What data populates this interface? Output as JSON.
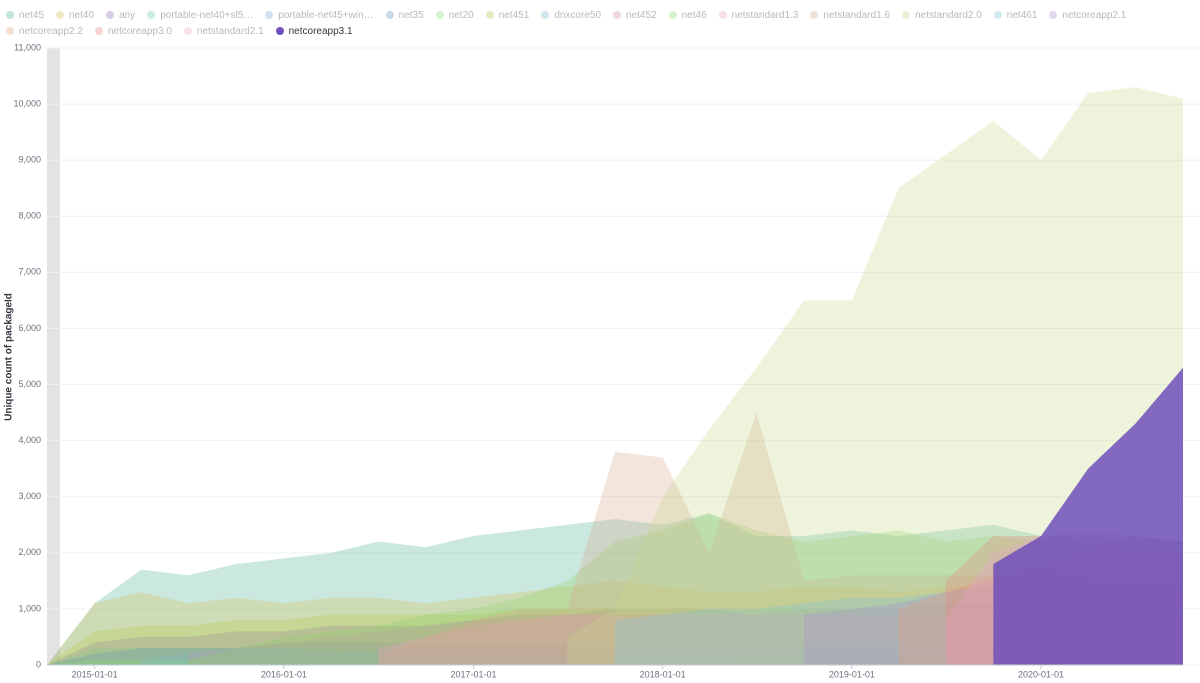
{
  "chart_data": {
    "type": "area",
    "y_label": "Unique count of packageId",
    "x": [
      "2014-10-01",
      "2015-01-01",
      "2015-04-01",
      "2015-07-01",
      "2015-10-01",
      "2016-01-01",
      "2016-04-01",
      "2016-07-01",
      "2016-10-01",
      "2017-01-01",
      "2017-04-01",
      "2017-07-01",
      "2017-10-01",
      "2018-01-01",
      "2018-04-01",
      "2018-07-01",
      "2018-10-01",
      "2019-01-01",
      "2019-04-01",
      "2019-07-01",
      "2019-10-01",
      "2020-01-01",
      "2020-04-01",
      "2020-07-01",
      "2020-10-01"
    ],
    "xlim": [
      "2014-10-01",
      "2020-10-01"
    ],
    "xticks": [
      "2015-01-01",
      "2016-01-01",
      "2017-01-01",
      "2018-01-01",
      "2019-01-01",
      "2020-01-01"
    ],
    "ylim": [
      0,
      11000
    ],
    "yticks": [
      0,
      {
        "value": 1000,
        "label": "1,000"
      },
      {
        "value": 2000,
        "label": "2,000"
      },
      {
        "value": 3000,
        "label": "3,000"
      },
      {
        "value": 4000,
        "label": "4,000"
      },
      {
        "value": 5000,
        "label": "5,000"
      },
      {
        "value": 6000,
        "label": "6,000"
      },
      {
        "value": 7000,
        "label": "7,000"
      },
      {
        "value": 8000,
        "label": "8,000"
      },
      {
        "value": 9000,
        "label": "9,000"
      },
      {
        "value": 10000,
        "label": "10,000"
      },
      {
        "value": 11000,
        "label": "11,000"
      }
    ],
    "grid": true,
    "series": [
      {
        "name": "net45",
        "color": "#54b399",
        "dimmed": true,
        "values": [
          0,
          1100,
          1700,
          1600,
          1800,
          1900,
          2000,
          2200,
          2100,
          2300,
          2400,
          2500,
          2600,
          2500,
          2700,
          2300,
          2300,
          2400,
          2300,
          2400,
          2500,
          2300,
          2300,
          2200,
          2200
        ]
      },
      {
        "name": "net40",
        "color": "#d6bf57",
        "dimmed": true,
        "values": [
          0,
          1100,
          1300,
          1100,
          1200,
          1100,
          1200,
          1200,
          1100,
          1200,
          1300,
          1400,
          1500,
          1400,
          1300,
          1300,
          1400,
          1400,
          1300,
          1400,
          1400,
          1300,
          1300,
          1200,
          1200
        ]
      },
      {
        "name": "any",
        "color": "#9170b8",
        "dimmed": true,
        "values": [
          0,
          400,
          500,
          500,
          600,
          600,
          700,
          700,
          700,
          800,
          900,
          900,
          1000,
          1000,
          1000,
          900,
          1000,
          1000,
          1000,
          1100,
          1100,
          1100,
          1200,
          1200,
          1100
        ]
      },
      {
        "name": "portable-net40+sl5…",
        "color": "#6dccb1",
        "dimmed": true,
        "values": [
          0,
          300,
          300,
          300,
          300,
          300,
          300,
          200,
          200,
          200,
          200,
          200,
          100,
          100,
          100,
          100,
          100,
          100,
          100,
          100,
          100,
          100,
          100,
          100,
          100
        ]
      },
      {
        "name": "portable-net45+win…",
        "color": "#79aad9",
        "dimmed": true,
        "values": [
          0,
          200,
          300,
          300,
          300,
          300,
          300,
          300,
          300,
          300,
          300,
          200,
          200,
          200,
          200,
          200,
          200,
          200,
          200,
          200,
          200,
          200,
          200,
          200,
          200
        ]
      },
      {
        "name": "net35",
        "color": "#6092c0",
        "dimmed": true,
        "values": [
          0,
          200,
          300,
          300,
          300,
          400,
          400,
          400,
          400,
          400,
          400,
          400,
          400,
          400,
          400,
          400,
          400,
          400,
          400,
          400,
          400,
          400,
          400,
          400,
          400
        ]
      },
      {
        "name": "net20",
        "color": "#7de07d",
        "dimmed": true,
        "values": [
          0,
          100,
          100,
          100,
          100,
          100,
          100,
          100,
          100,
          100,
          100,
          100,
          100,
          100,
          100,
          100,
          100,
          100,
          100,
          100,
          100,
          100,
          100,
          100,
          100
        ]
      },
      {
        "name": "net451",
        "color": "#b0c94a",
        "dimmed": true,
        "values": [
          0,
          600,
          700,
          700,
          800,
          800,
          900,
          900,
          900,
          900,
          1000,
          1000,
          1000,
          1000,
          1000,
          1000,
          1000,
          1000,
          900,
          900,
          900,
          900,
          900,
          900,
          900
        ]
      },
      {
        "name": "dnxcore50",
        "color": "#7fb8cc",
        "dimmed": true,
        "values": [
          null,
          null,
          100,
          200,
          300,
          300,
          200,
          200,
          100,
          100,
          100,
          100,
          100,
          100,
          100,
          0,
          0,
          0,
          0,
          0,
          0,
          0,
          0,
          0,
          0
        ]
      },
      {
        "name": "net452",
        "color": "#ca8eae",
        "dimmed": true,
        "values": [
          null,
          null,
          null,
          200,
          300,
          400,
          500,
          600,
          700,
          800,
          800,
          900,
          900,
          900,
          900,
          900,
          900,
          900,
          900,
          900,
          900,
          900,
          900,
          900,
          900
        ]
      },
      {
        "name": "net46",
        "color": "#8fd36a",
        "dimmed": true,
        "values": [
          null,
          null,
          null,
          100,
          300,
          500,
          600,
          700,
          900,
          1000,
          1200,
          1500,
          2200,
          2400,
          2700,
          2400,
          2200,
          2300,
          2400,
          2200,
          2300,
          2200,
          2300,
          2300,
          2200
        ]
      },
      {
        "name": "netstandard1.3",
        "color": "#e7a0c2",
        "dimmed": true,
        "values": [
          null,
          null,
          null,
          null,
          null,
          null,
          null,
          300,
          500,
          700,
          800,
          900,
          900,
          900,
          900,
          900,
          900,
          900,
          900,
          900,
          900,
          800,
          800,
          800,
          800
        ]
      },
      {
        "name": "netstandard1.6",
        "color": "#d6a58c",
        "dimmed": true,
        "values": [
          null,
          null,
          null,
          null,
          null,
          null,
          null,
          200,
          500,
          800,
          1000,
          1000,
          3800,
          3700,
          2000,
          4500,
          1500,
          1600,
          1600,
          1600,
          1600,
          1500,
          1500,
          1400,
          1400
        ]
      },
      {
        "name": "netstandard2.0",
        "color": "#c6d68a",
        "dimmed": true,
        "values": [
          null,
          null,
          null,
          null,
          null,
          null,
          null,
          null,
          null,
          null,
          null,
          500,
          1000,
          3000,
          4200,
          5300,
          6500,
          6500,
          8500,
          9100,
          9700,
          9000,
          10200,
          10300,
          10100
        ]
      },
      {
        "name": "net461",
        "color": "#7fc4e0",
        "dimmed": true,
        "values": [
          null,
          null,
          null,
          null,
          null,
          null,
          null,
          null,
          null,
          null,
          null,
          null,
          800,
          900,
          1000,
          1000,
          1100,
          1200,
          1200,
          1300,
          1400,
          1400,
          1400,
          1400,
          1300
        ]
      },
      {
        "name": "netcoreapp2.1",
        "color": "#a98fd0",
        "dimmed": true,
        "values": [
          null,
          null,
          null,
          null,
          null,
          null,
          null,
          null,
          null,
          null,
          null,
          null,
          null,
          null,
          null,
          null,
          900,
          1000,
          1100,
          1300,
          1500,
          1800,
          2100,
          2300,
          2200
        ]
      },
      {
        "name": "netcoreapp2.2",
        "color": "#e0a37b",
        "dimmed": true,
        "values": [
          null,
          null,
          null,
          null,
          null,
          null,
          null,
          null,
          null,
          null,
          null,
          null,
          null,
          null,
          null,
          null,
          null,
          null,
          1000,
          1300,
          1600,
          1700,
          1500,
          1500,
          1400
        ]
      },
      {
        "name": "netcoreapp3.0",
        "color": "#e7857f",
        "dimmed": true,
        "values": [
          null,
          null,
          null,
          null,
          null,
          null,
          null,
          null,
          null,
          null,
          null,
          null,
          null,
          null,
          null,
          null,
          null,
          null,
          null,
          1500,
          2300,
          2300,
          2200,
          2100,
          2000
        ]
      },
      {
        "name": "netstandard2.1",
        "color": "#e8a2c9",
        "dimmed": true,
        "values": [
          null,
          null,
          null,
          null,
          null,
          null,
          null,
          null,
          null,
          null,
          null,
          null,
          null,
          null,
          null,
          null,
          null,
          null,
          null,
          800,
          2000,
          2300,
          2400,
          2300,
          2200
        ]
      },
      {
        "name": "netcoreapp3.1",
        "color": "#6f4fb8",
        "dimmed": false,
        "values": [
          null,
          null,
          null,
          null,
          null,
          null,
          null,
          null,
          null,
          null,
          null,
          null,
          null,
          null,
          null,
          null,
          null,
          null,
          null,
          null,
          1800,
          2300,
          3500,
          4300,
          5300
        ]
      }
    ]
  }
}
